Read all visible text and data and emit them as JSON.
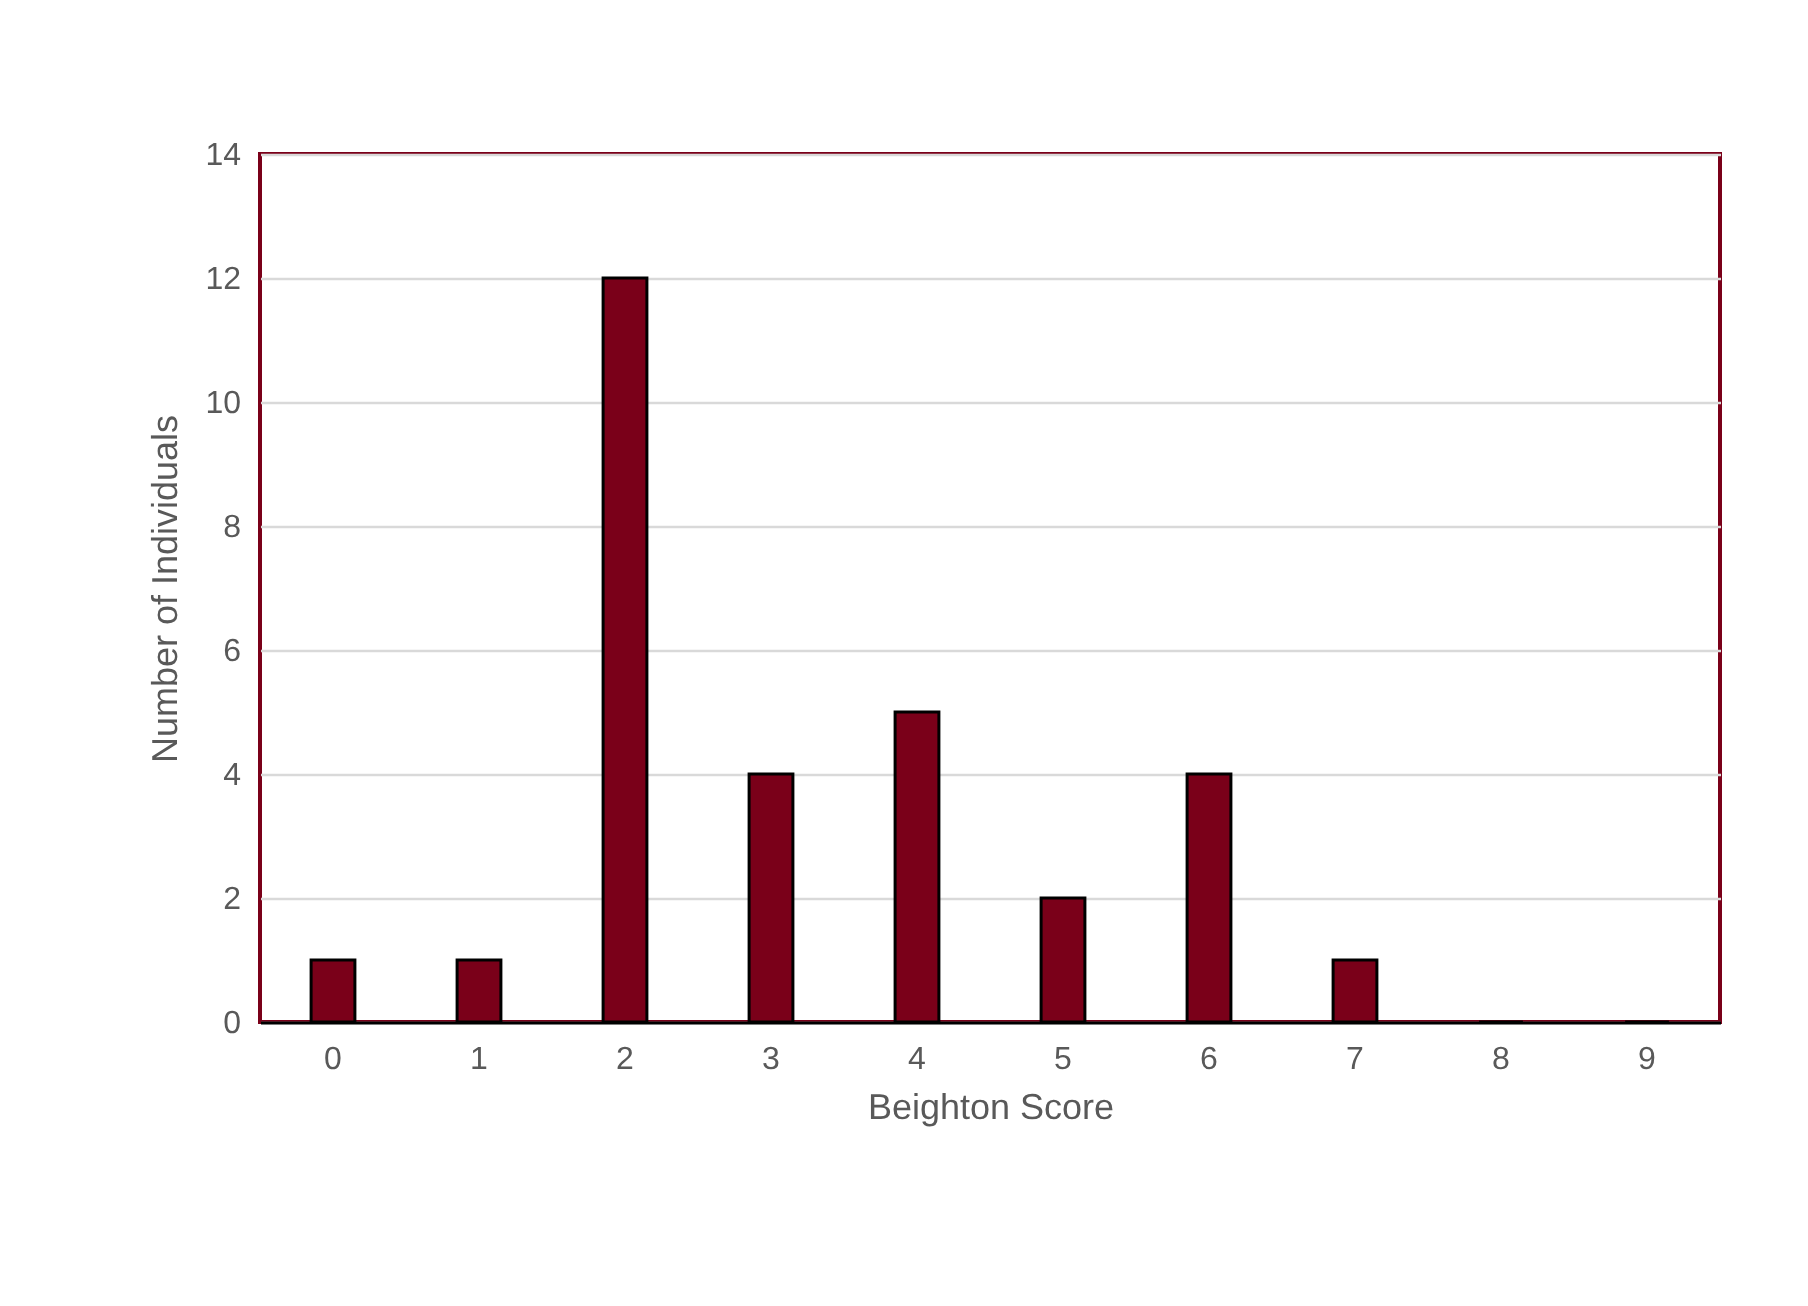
{
  "chart_data": {
    "type": "bar",
    "xlabel": "Beighton Score",
    "ylabel": "Number of Individuals",
    "categories": [
      "0",
      "1",
      "2",
      "3",
      "4",
      "5",
      "6",
      "7",
      "8",
      "9"
    ],
    "values": [
      1,
      1,
      12,
      4,
      5,
      2,
      4,
      1,
      0,
      0
    ],
    "color": "#7a0019",
    "ylim": [
      0,
      14
    ],
    "yticks": [
      0,
      2,
      4,
      6,
      8,
      10,
      12,
      14
    ],
    "grid": "y"
  }
}
